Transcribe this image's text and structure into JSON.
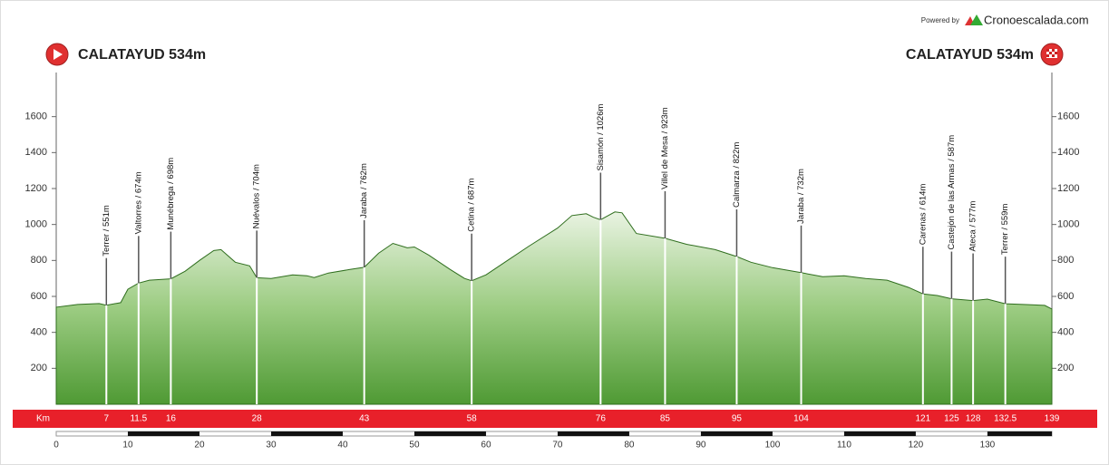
{
  "chart_data": {
    "type": "elevation-profile",
    "powered_by": "Powered by",
    "brand": "Cronoescalada.com",
    "start_label": "CALATAYUD 534m",
    "finish_label": "CALATAYUD 534m",
    "km_label": "Km",
    "distance": 139,
    "xlim": [
      0,
      139
    ],
    "xticks": [
      0,
      10,
      20,
      30,
      40,
      50,
      60,
      70,
      80,
      90,
      100,
      110,
      120,
      130
    ],
    "ylim": [
      0,
      1800
    ],
    "yticks": [
      200,
      400,
      600,
      800,
      1000,
      1200,
      1400,
      1600
    ],
    "profile": {
      "x": [
        0,
        3,
        6,
        7,
        9,
        10,
        11.5,
        13,
        16,
        18,
        20,
        22,
        23,
        25,
        27,
        28,
        30,
        33,
        35,
        36,
        38,
        41,
        43,
        45,
        47,
        49,
        50,
        52,
        55,
        57,
        58,
        60,
        63,
        66,
        70,
        72,
        74,
        75,
        76,
        78,
        79,
        81,
        85,
        88,
        92,
        95,
        97,
        100,
        104,
        107,
        110,
        113,
        116,
        119,
        121,
        123,
        125,
        128,
        130,
        132.5,
        135,
        138,
        139
      ],
      "elevation": [
        540,
        555,
        560,
        551,
        565,
        640,
        674,
        690,
        698,
        740,
        800,
        855,
        860,
        790,
        770,
        704,
        700,
        720,
        715,
        705,
        730,
        750,
        762,
        840,
        895,
        870,
        875,
        830,
        750,
        700,
        687,
        720,
        800,
        880,
        980,
        1050,
        1060,
        1040,
        1026,
        1070,
        1065,
        950,
        923,
        890,
        860,
        822,
        790,
        760,
        732,
        710,
        715,
        700,
        690,
        650,
        614,
        605,
        587,
        577,
        585,
        559,
        555,
        550,
        530
      ]
    },
    "waypoints": [
      {
        "km": 7,
        "elevation": 551,
        "label": "Terrer / 551m"
      },
      {
        "km": 11.5,
        "elevation": 674,
        "label": "Valtorres / 674m"
      },
      {
        "km": 16,
        "elevation": 698,
        "label": "Munébrega / 698m"
      },
      {
        "km": 28,
        "elevation": 704,
        "label": "Nuévalos / 704m"
      },
      {
        "km": 43,
        "elevation": 762,
        "label": "Jaraba / 762m"
      },
      {
        "km": 58,
        "elevation": 687,
        "label": "Cetina / 687m"
      },
      {
        "km": 76,
        "elevation": 1026,
        "label": "Sisamón / 1026m"
      },
      {
        "km": 85,
        "elevation": 923,
        "label": "Villel de Mesa / 923m"
      },
      {
        "km": 95,
        "elevation": 822,
        "label": "Calmarza / 822m"
      },
      {
        "km": 104,
        "elevation": 732,
        "label": "Jaraba / 732m"
      },
      {
        "km": 121,
        "elevation": 614,
        "label": "Carenas / 614m"
      },
      {
        "km": 125,
        "elevation": 587,
        "label": "Castejón de las Armas / 587m"
      },
      {
        "km": 128,
        "elevation": 577,
        "label": "Ateca / 577m"
      },
      {
        "km": 132.5,
        "elevation": 559,
        "label": "Terrer / 559m"
      }
    ]
  }
}
